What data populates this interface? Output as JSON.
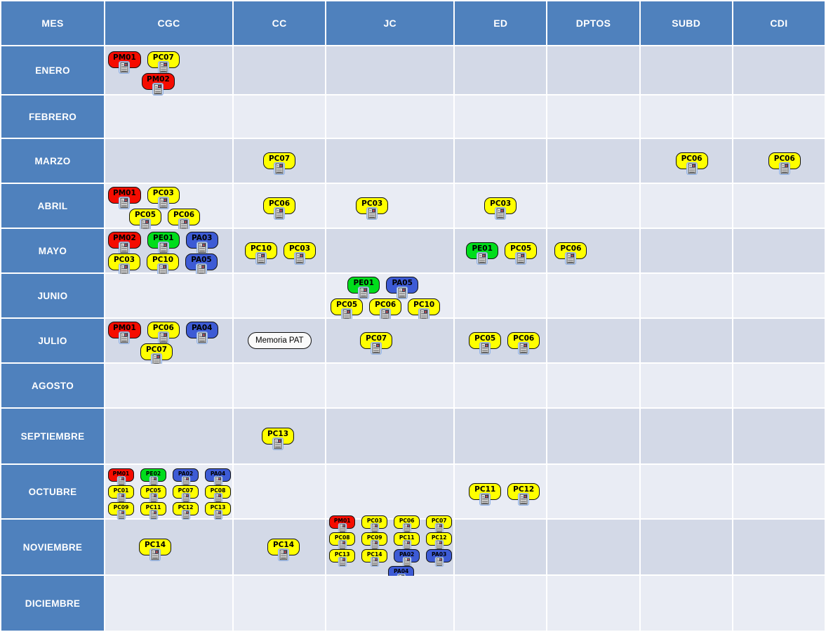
{
  "table": {
    "columns": [
      "MES",
      "CGC",
      "CC",
      "JC",
      "ED",
      "DPTOS",
      "SUBD",
      "CDI"
    ],
    "months": [
      "ENERO",
      "FEBRERO",
      "MARZO",
      "ABRIL",
      "MAYO",
      "JUNIO",
      "JULIO",
      "AGOSTO",
      "SEPTIEMBRE",
      "OCTUBRE",
      "NOVIEMBRE",
      "DICIEMBRE"
    ]
  },
  "colors": {
    "header_bg": "#4f81bd",
    "row_dark": "#d3d9e7",
    "row_light": "#e9ecf4",
    "grid_line": "#ffffff",
    "badge_border": "#101010",
    "badge_text": "#000000"
  },
  "badge_colors": {
    "red": "#f50c00",
    "yellow": "#ffff00",
    "green": "#00dd1c",
    "blue": "#3d5bd5",
    "white": "#fafafa"
  },
  "cells": [
    {
      "month": "ENERO",
      "col": "CGC",
      "size": "md",
      "rows": [
        {
          "indent": 2,
          "items": [
            {
              "label": "PM01",
              "color": "red"
            },
            {
              "label": "PC07",
              "color": "yellow"
            }
          ]
        },
        {
          "indent": 50,
          "items": [
            {
              "label": "PM02",
              "color": "red"
            }
          ]
        }
      ]
    },
    {
      "month": "MARZO",
      "col": "CC",
      "size": "md",
      "rows": [
        {
          "indent": 40,
          "items": [
            {
              "label": "PC07",
              "color": "yellow"
            }
          ]
        }
      ]
    },
    {
      "month": "MARZO",
      "col": "SUBD",
      "size": "md",
      "rows": [
        {
          "indent": 48,
          "items": [
            {
              "label": "PC06",
              "color": "yellow"
            }
          ]
        }
      ]
    },
    {
      "month": "MARZO",
      "col": "CDI",
      "size": "md",
      "rows": [
        {
          "indent": 48,
          "items": [
            {
              "label": "PC06",
              "color": "yellow"
            }
          ]
        }
      ]
    },
    {
      "month": "ABRIL",
      "col": "CGC",
      "size": "md",
      "rows": [
        {
          "indent": 2,
          "items": [
            {
              "label": "PM01",
              "color": "red"
            },
            {
              "label": "PC03",
              "color": "yellow"
            }
          ]
        },
        {
          "indent": 32,
          "items": [
            {
              "label": "PC05",
              "color": "yellow"
            },
            {
              "label": "PC06",
              "color": "yellow"
            }
          ]
        }
      ]
    },
    {
      "month": "ABRIL",
      "col": "CC",
      "size": "md",
      "rows": [
        {
          "indent": 40,
          "items": [
            {
              "label": "PC06",
              "color": "yellow"
            }
          ]
        }
      ]
    },
    {
      "month": "ABRIL",
      "col": "JC",
      "size": "md",
      "rows": [
        {
          "indent": 40,
          "items": [
            {
              "label": "PC03",
              "color": "yellow"
            }
          ]
        }
      ]
    },
    {
      "month": "ABRIL",
      "col": "ED",
      "size": "md",
      "rows": [
        {
          "indent": 40,
          "items": [
            {
              "label": "PC03",
              "color": "yellow"
            }
          ]
        }
      ]
    },
    {
      "month": "MAYO",
      "col": "CGC",
      "size": "md",
      "rows": [
        {
          "indent": 2,
          "items": [
            {
              "label": "PM02",
              "color": "red"
            },
            {
              "label": "PE01",
              "color": "green"
            },
            {
              "label": "PA03",
              "color": "blue"
            }
          ]
        },
        {
          "indent": 2,
          "items": [
            {
              "label": "PC03",
              "color": "yellow"
            },
            {
              "label": "PC10",
              "color": "yellow"
            },
            {
              "label": "PA05",
              "color": "blue"
            }
          ]
        }
      ]
    },
    {
      "month": "MAYO",
      "col": "CC",
      "size": "md",
      "rows": [
        {
          "indent": 14,
          "items": [
            {
              "label": "PC10",
              "color": "yellow"
            },
            {
              "label": "PC03",
              "color": "yellow"
            }
          ]
        }
      ]
    },
    {
      "month": "MAYO",
      "col": "ED",
      "size": "md",
      "rows": [
        {
          "indent": 14,
          "items": [
            {
              "label": "PE01",
              "color": "green"
            },
            {
              "label": "PC05",
              "color": "yellow"
            }
          ]
        }
      ]
    },
    {
      "month": "MAYO",
      "col": "DPTOS",
      "size": "md",
      "rows": [
        {
          "indent": 8,
          "items": [
            {
              "label": "PC06",
              "color": "yellow"
            }
          ]
        }
      ]
    },
    {
      "month": "JUNIO",
      "col": "JC",
      "size": "md",
      "rows": [
        {
          "indent": 28,
          "items": [
            {
              "label": "PE01",
              "color": "green"
            },
            {
              "label": "PA05",
              "color": "blue"
            }
          ]
        },
        {
          "indent": 4,
          "items": [
            {
              "label": "PC05",
              "color": "yellow"
            },
            {
              "label": "PC06",
              "color": "yellow"
            },
            {
              "label": "PC10",
              "color": "yellow"
            }
          ]
        }
      ]
    },
    {
      "month": "JULIO",
      "col": "CGC",
      "size": "md",
      "rows": [
        {
          "indent": 2,
          "items": [
            {
              "label": "PM01",
              "color": "red"
            },
            {
              "label": "PC06",
              "color": "yellow"
            },
            {
              "label": "PA04",
              "color": "blue"
            }
          ]
        },
        {
          "indent": 48,
          "items": [
            {
              "label": "PC07",
              "color": "yellow"
            }
          ]
        }
      ]
    },
    {
      "month": "JULIO",
      "col": "CC",
      "size": "md",
      "rows": [
        {
          "indent": 18,
          "items": [
            {
              "label": "Memoria PAT",
              "color": "white",
              "icon": false,
              "pill": true
            }
          ]
        }
      ]
    },
    {
      "month": "JULIO",
      "col": "JC",
      "size": "md",
      "rows": [
        {
          "indent": 46,
          "items": [
            {
              "label": "PC07",
              "color": "yellow"
            }
          ]
        }
      ]
    },
    {
      "month": "JULIO",
      "col": "ED",
      "size": "md",
      "rows": [
        {
          "indent": 18,
          "items": [
            {
              "label": "PC05",
              "color": "yellow"
            },
            {
              "label": "PC06",
              "color": "yellow"
            }
          ]
        }
      ]
    },
    {
      "month": "SEPTIEMBRE",
      "col": "CC",
      "size": "md",
      "rows": [
        {
          "indent": 38,
          "items": [
            {
              "label": "PC13",
              "color": "yellow"
            }
          ]
        }
      ]
    },
    {
      "month": "OCTUBRE",
      "col": "CGC",
      "size": "sm",
      "rows": [
        {
          "indent": 2,
          "items": [
            {
              "label": "PM01",
              "color": "red"
            },
            {
              "label": "PE02",
              "color": "green"
            },
            {
              "label": "PA02",
              "color": "blue"
            },
            {
              "label": "PA04",
              "color": "blue"
            }
          ]
        },
        {
          "indent": 2,
          "items": [
            {
              "label": "PC01",
              "color": "yellow"
            },
            {
              "label": "PC05",
              "color": "yellow"
            },
            {
              "label": "PC07",
              "color": "yellow"
            },
            {
              "label": "PC08",
              "color": "yellow"
            }
          ]
        },
        {
          "indent": 2,
          "items": [
            {
              "label": "PC09",
              "color": "yellow"
            },
            {
              "label": "PC11",
              "color": "yellow"
            },
            {
              "label": "PC12",
              "color": "yellow"
            },
            {
              "label": "PC13",
              "color": "yellow"
            }
          ]
        }
      ]
    },
    {
      "month": "OCTUBRE",
      "col": "ED",
      "size": "md",
      "rows": [
        {
          "indent": 18,
          "items": [
            {
              "label": "PC11",
              "color": "yellow"
            },
            {
              "label": "PC12",
              "color": "yellow"
            }
          ]
        }
      ]
    },
    {
      "month": "NOVIEMBRE",
      "col": "CGC",
      "size": "md",
      "rows": [
        {
          "indent": 46,
          "items": [
            {
              "label": "PC14",
              "color": "yellow"
            }
          ]
        }
      ]
    },
    {
      "month": "NOVIEMBRE",
      "col": "CC",
      "size": "md",
      "rows": [
        {
          "indent": 46,
          "items": [
            {
              "label": "PC14",
              "color": "yellow"
            }
          ]
        }
      ]
    },
    {
      "month": "NOVIEMBRE",
      "col": "JC",
      "size": "sm",
      "rows": [
        {
          "indent": 2,
          "items": [
            {
              "label": "PM01",
              "color": "red"
            },
            {
              "label": "PC03",
              "color": "yellow"
            },
            {
              "label": "PC06",
              "color": "yellow"
            },
            {
              "label": "PC07",
              "color": "yellow"
            }
          ]
        },
        {
          "indent": 2,
          "items": [
            {
              "label": "PC08",
              "color": "yellow"
            },
            {
              "label": "PC09",
              "color": "yellow"
            },
            {
              "label": "PC11",
              "color": "yellow"
            },
            {
              "label": "PC12",
              "color": "yellow"
            }
          ]
        },
        {
          "indent": 2,
          "items": [
            {
              "label": "PC13",
              "color": "yellow"
            },
            {
              "label": "PC14",
              "color": "yellow"
            },
            {
              "label": "PA02",
              "color": "blue"
            },
            {
              "label": "PA03",
              "color": "blue"
            }
          ]
        },
        {
          "indent": 86,
          "items": [
            {
              "label": "PA04",
              "color": "blue"
            }
          ]
        }
      ]
    }
  ]
}
